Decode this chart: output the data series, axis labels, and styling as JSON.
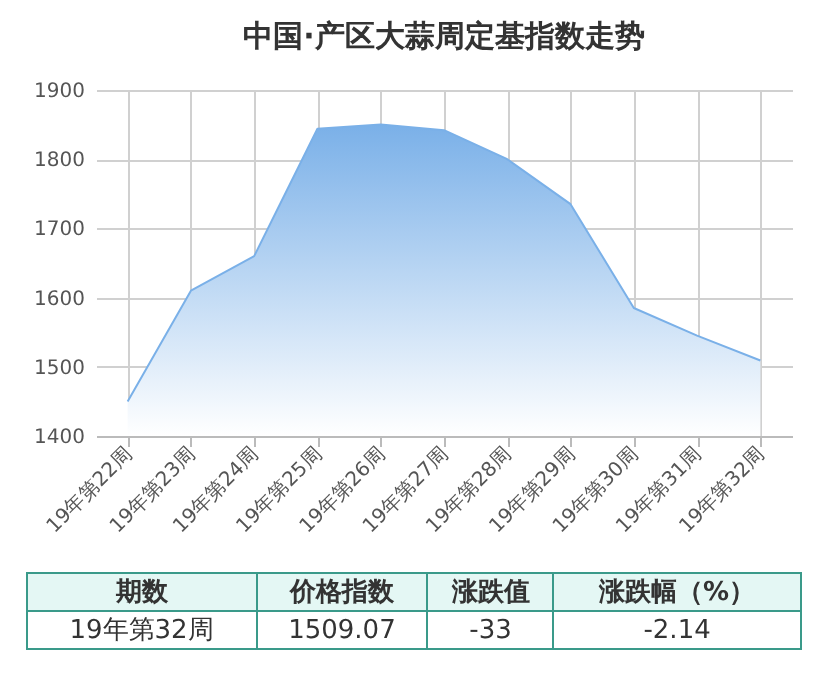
{
  "chart_data": {
    "type": "area",
    "title": "中国·产区大蒜周定基指数走势",
    "categories": [
      "19年第22周",
      "19年第23周",
      "19年第24周",
      "19年第25周",
      "19年第26周",
      "19年第27周",
      "19年第28周",
      "19年第29周",
      "19年第30周",
      "19年第31周",
      "19年第32周"
    ],
    "series": [
      {
        "color": "#7ab0e8",
        "values": [
          1450,
          1610,
          1660,
          1844,
          1850,
          1842,
          1800,
          1735,
          1585,
          1545,
          1509.07
        ]
      }
    ],
    "ylim": [
      1400,
      1900
    ],
    "yticks": [
      1400,
      1500,
      1600,
      1700,
      1800,
      1900
    ],
    "grid": true,
    "annotations": [
      "期数",
      "价格指数",
      "涨跌值",
      "涨跌幅（%）",
      "19年第32周",
      "1509.07",
      "-33",
      "-2.14"
    ]
  }
}
